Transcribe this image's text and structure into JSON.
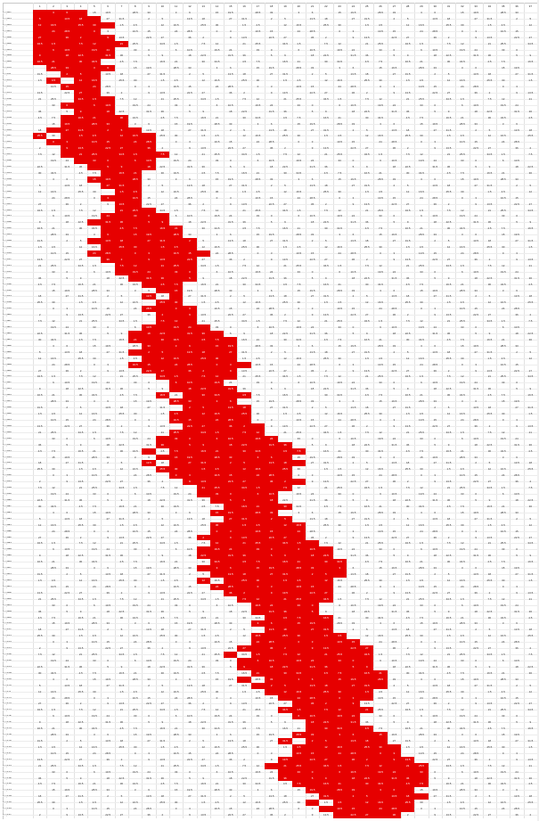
{
  "sheet": {
    "row_label_prefix": "seq",
    "col_headers": [
      "1",
      "2",
      "3",
      "4",
      "5",
      "6",
      "7",
      "8",
      "9",
      "10",
      "11",
      "12",
      "13",
      "14",
      "15",
      "16",
      "17",
      "18",
      "19",
      "20",
      "21",
      "22",
      "23",
      "24",
      "25",
      "26",
      "27",
      "28",
      "29",
      "30",
      "31",
      "32",
      "33",
      "34",
      "35",
      "36",
      "37"
    ],
    "rows": 131,
    "red_color": "#e60000",
    "sample_values": [
      "0",
      "1.5",
      "2",
      "3",
      "4.5",
      "5",
      "6",
      "7.5",
      "9",
      "10.5",
      "12",
      "13.5",
      "15",
      "16.5",
      "18",
      "19.5",
      "21",
      "22.5",
      "24",
      "25.5",
      "27",
      "28.5",
      "30",
      "31.5",
      "33",
      "34.5",
      "36"
    ]
  }
}
